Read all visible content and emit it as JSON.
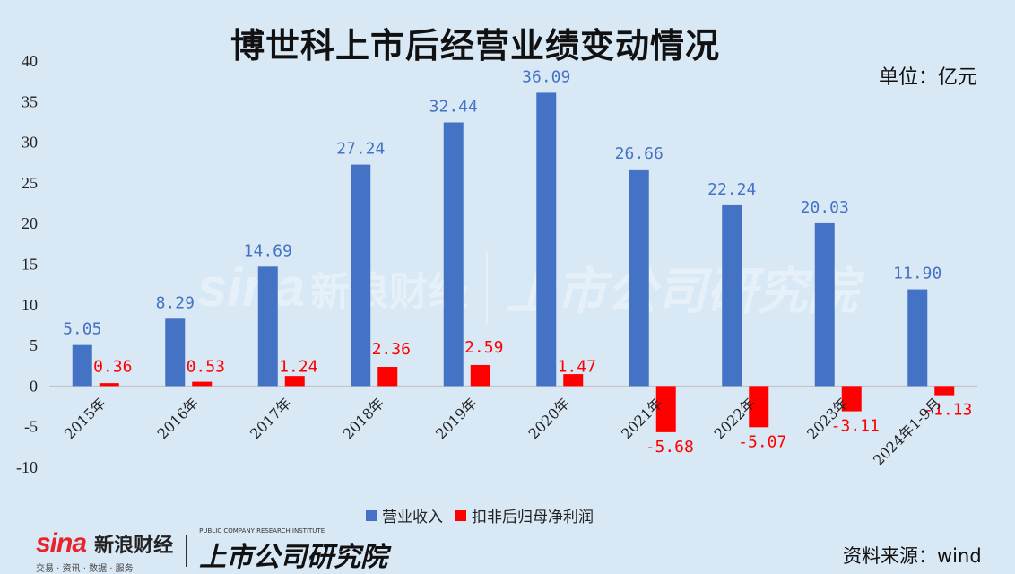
{
  "title": "博世科上市后经营业绩变动情况",
  "unit_label": "单位：亿元",
  "source_label": "资料来源：wind",
  "colors": {
    "revenue": "#4472c4",
    "profit": "#ff0000",
    "background": "#d9e8f5"
  },
  "logo": {
    "sina": "sina",
    "brand": "新浪财经",
    "sub": "交易 · 资讯 · 数据 · 服务",
    "institute": "上市公司研究院",
    "institute_en": "PUBLIC COMPANY RESEARCH INSTITUTE"
  },
  "chart_data": {
    "type": "bar",
    "categories": [
      "2015年",
      "2016年",
      "2017年",
      "2018年",
      "2019年",
      "2020年",
      "2021年",
      "2022年",
      "2023年",
      "2024年1-9月"
    ],
    "series": [
      {
        "name": "营业收入",
        "values": [
          5.05,
          8.29,
          14.69,
          27.24,
          32.44,
          36.09,
          26.66,
          22.24,
          20.03,
          11.9
        ],
        "labels": [
          "5.05",
          "8.29",
          "14.69",
          "27.24",
          "32.44",
          "36.09",
          "26.66",
          "22.24",
          "20.03",
          "11.90"
        ]
      },
      {
        "name": "扣非后归母净利润",
        "values": [
          0.36,
          0.53,
          1.24,
          2.36,
          2.59,
          1.47,
          -5.68,
          -5.07,
          -3.11,
          -1.13
        ],
        "labels": [
          "0.36",
          "0.53",
          "1.24",
          "2.36",
          "2.59",
          "1.47",
          "-5.68",
          "-5.07",
          "-3.11",
          "-1.13"
        ]
      }
    ],
    "ylim": [
      -10,
      40
    ],
    "yticks": [
      -10,
      -5,
      0,
      5,
      10,
      15,
      20,
      25,
      30,
      35,
      40
    ],
    "legend_position": "bottom",
    "grid": false
  }
}
